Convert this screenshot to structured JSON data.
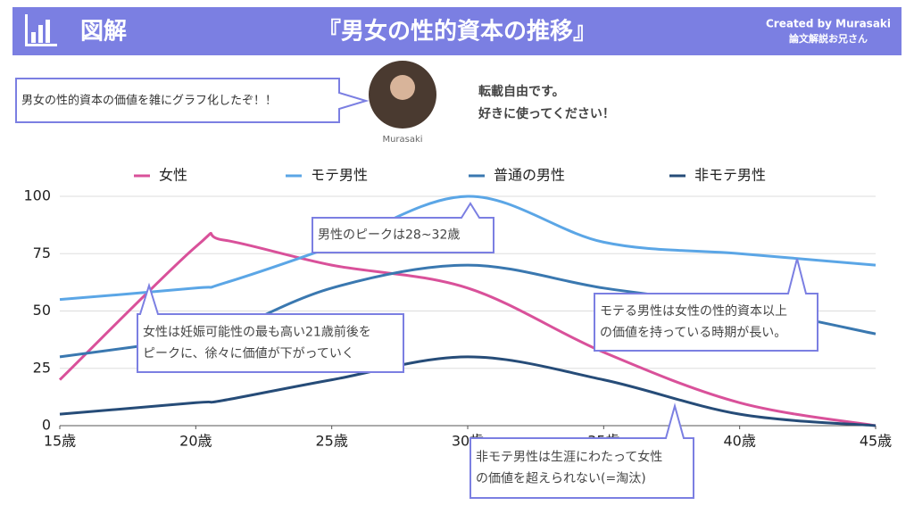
{
  "header": {
    "label": "図解",
    "title": "『男女の性的資本の推移』",
    "credit": "Created by Murasaki",
    "credit_sub": "論文解説お兄さん"
  },
  "intro": {
    "bubble": "男女の性的資本の価値を雑にグラフ化したぞ！！",
    "author": "Murasaki",
    "notes": [
      "転載自由です。",
      "好きに使ってください！"
    ]
  },
  "chart_data": {
    "type": "line",
    "x": [
      15,
      20,
      21,
      25,
      30,
      35,
      40,
      45
    ],
    "series": [
      {
        "name": "女性",
        "color": "#d9519a",
        "values": [
          20,
          78,
          81,
          70,
          60,
          32,
          10,
          0
        ]
      },
      {
        "name": "モテ男性",
        "color": "#5ba6e6",
        "values": [
          55,
          60,
          62,
          78,
          100,
          80,
          75,
          70
        ]
      },
      {
        "name": "普通の男性",
        "color": "#3a78b0",
        "values": [
          30,
          38,
          40,
          60,
          70,
          60,
          52,
          40
        ]
      },
      {
        "name": "非モテ男性",
        "color": "#264c78",
        "values": [
          5,
          10,
          11,
          20,
          30,
          20,
          5,
          0
        ]
      }
    ],
    "xlim": [
      15,
      45
    ],
    "xticks": [
      {
        "value": 15,
        "label": "15歳"
      },
      {
        "value": 20,
        "label": "20歳"
      },
      {
        "value": 25,
        "label": "25歳"
      },
      {
        "value": 30,
        "label": "30歳"
      },
      {
        "value": 35,
        "label": "35歳"
      },
      {
        "value": 40,
        "label": "40歳"
      },
      {
        "value": 45,
        "label": "45歳"
      }
    ],
    "ylim": [
      0,
      100
    ],
    "yticks": [
      0,
      25,
      50,
      75,
      100
    ],
    "grid": true,
    "legend": "top",
    "annotations": [
      {
        "lines": [
          "男性のピークは28~32歳"
        ]
      },
      {
        "lines": [
          "女性は妊娠可能性の最も高い21歳前後を",
          "ピークに、徐々に価値が下がっていく"
        ]
      },
      {
        "lines": [
          "モテる男性は女性の性的資本以上",
          "の価値を持っている時期が長い。"
        ]
      },
      {
        "lines": [
          "非モテ男性は生涯にわたって女性",
          "の価値を超えられない(=淘汰)"
        ]
      }
    ]
  }
}
